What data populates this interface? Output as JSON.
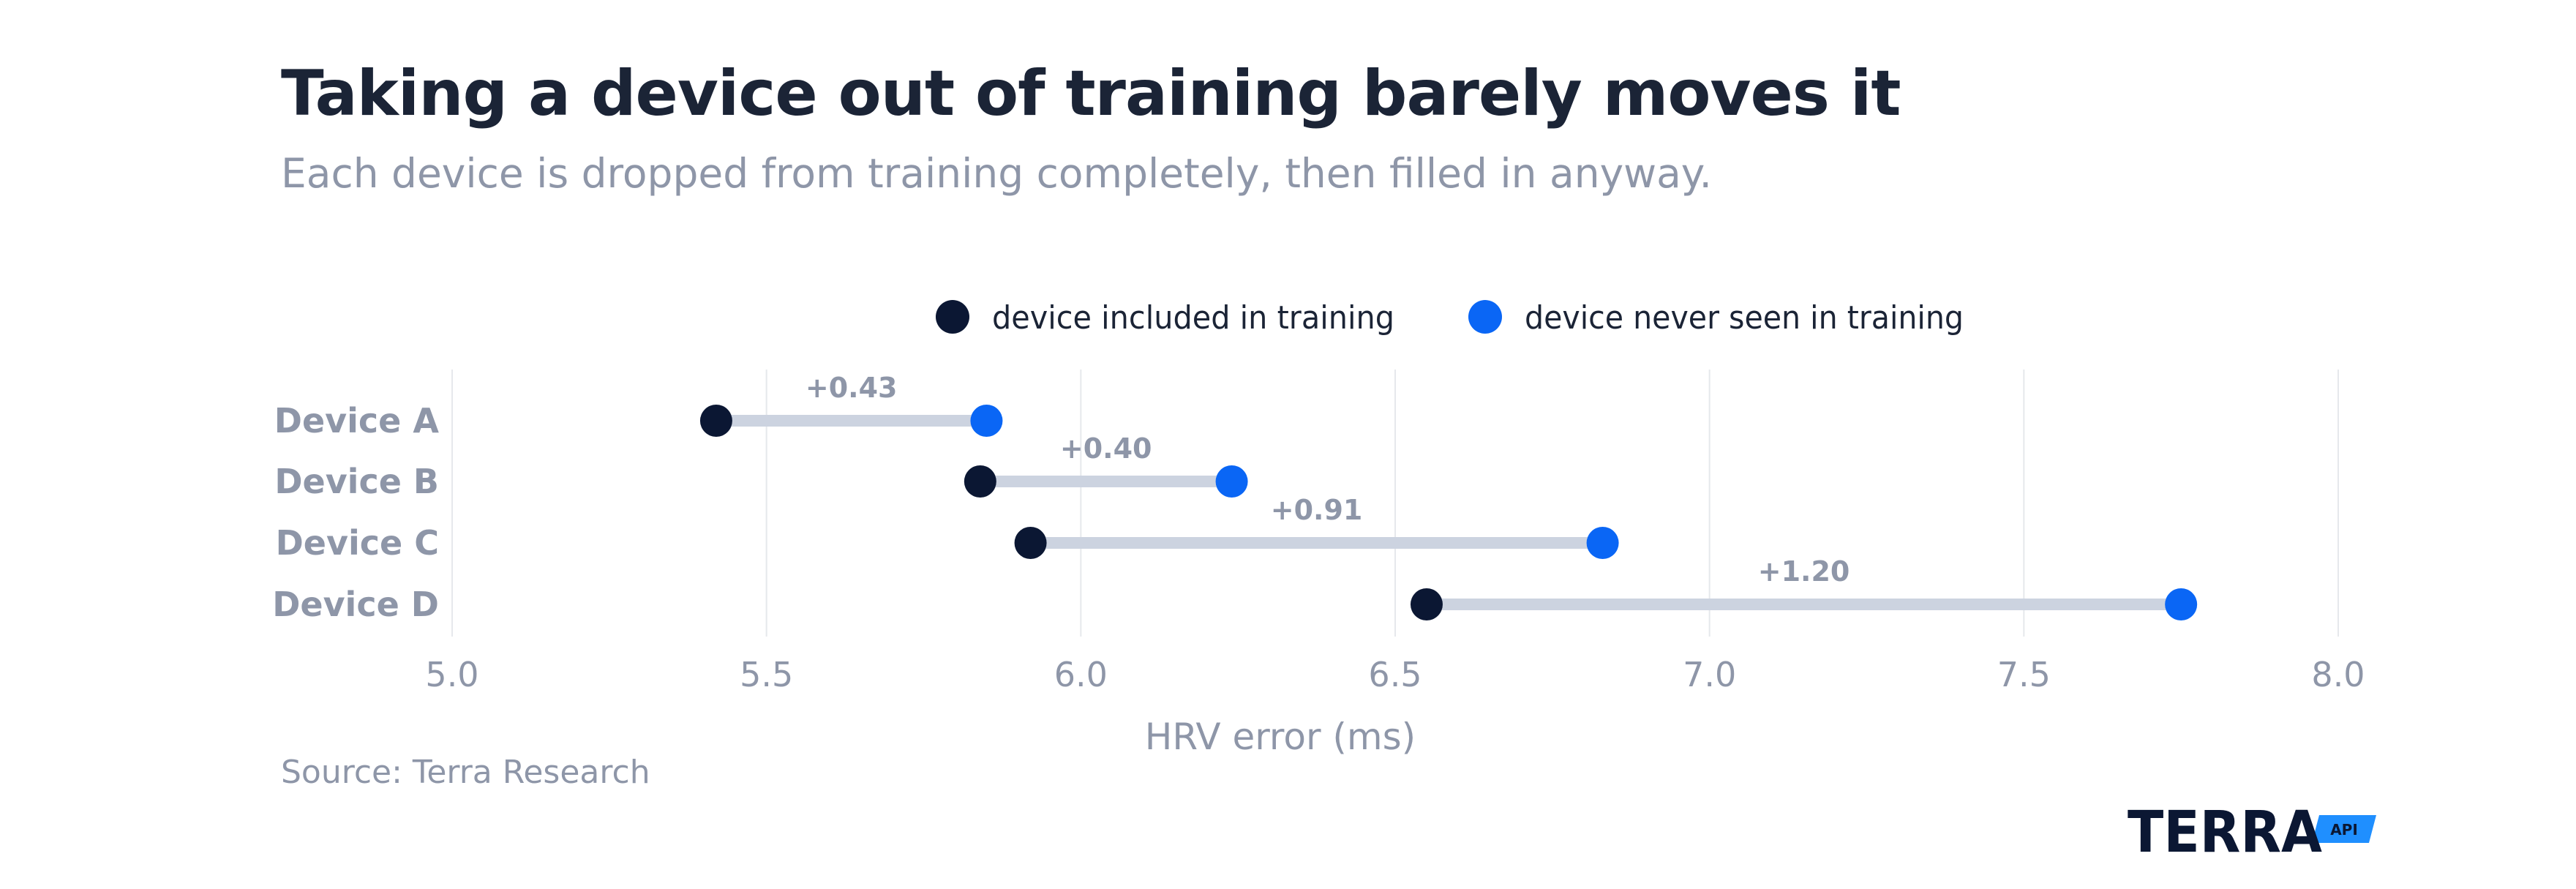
{
  "title": "Taking a device out of training barely moves it",
  "subtitle": "Each device is dropped from training completely, then filled in anyway.",
  "source": "Source: Terra Research",
  "logo": {
    "wordmark": "TERRA",
    "badge": "API"
  },
  "colors": {
    "included": "#0b1733",
    "never_seen": "#0a66f5",
    "connector": "#ccd3e0",
    "gridline": "#e6e8ec",
    "axis_text": "#8e96a8",
    "title": "#1b2436"
  },
  "chart_data": {
    "type": "scatter",
    "chart_style": "dumbbell",
    "categories": [
      "Device A",
      "Device B",
      "Device C",
      "Device D"
    ],
    "series": [
      {
        "name": "device included in training",
        "values": [
          5.42,
          5.84,
          5.92,
          6.55
        ]
      },
      {
        "name": "device never seen in training",
        "values": [
          5.85,
          6.24,
          6.83,
          7.75
        ]
      }
    ],
    "annotations": [
      "+0.43",
      "+0.40",
      "+0.91",
      "+1.20"
    ],
    "xlabel": "HRV error (ms)",
    "xlim": [
      5.0,
      8.0
    ],
    "xticks": [
      "5.0",
      "5.5",
      "6.0",
      "6.5",
      "7.0",
      "7.5",
      "8.0"
    ],
    "grid": "vertical",
    "legend_position": "top-center"
  }
}
